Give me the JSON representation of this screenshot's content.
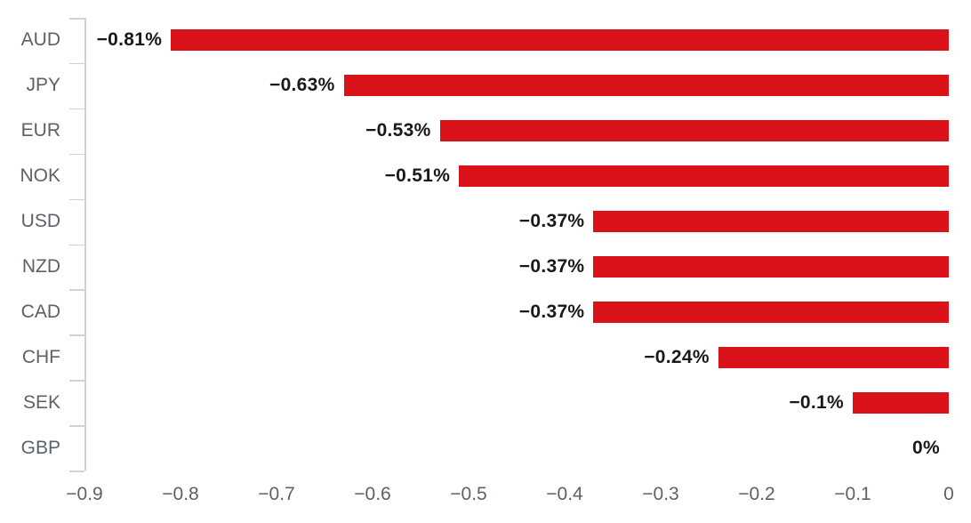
{
  "chart_data": {
    "type": "bar",
    "orientation": "horizontal",
    "title": "",
    "xlabel": "",
    "ylabel": "",
    "categories": [
      "AUD",
      "JPY",
      "EUR",
      "NOK",
      "USD",
      "NZD",
      "CAD",
      "CHF",
      "SEK",
      "GBP"
    ],
    "values": [
      -0.81,
      -0.63,
      -0.53,
      -0.51,
      -0.37,
      -0.37,
      -0.37,
      -0.24,
      -0.1,
      0
    ],
    "bar_labels": [
      "−0.81%",
      "−0.63%",
      "−0.53%",
      "−0.51%",
      "−0.37%",
      "−0.37%",
      "−0.37%",
      "−0.24%",
      "−0.1%",
      "0%"
    ],
    "x_tick_values": [
      -0.9,
      -0.8,
      -0.7,
      -0.6,
      -0.5,
      -0.4,
      -0.3,
      -0.2,
      -0.1,
      0
    ],
    "x_tick_labels": [
      "−0.9",
      "−0.8",
      "−0.7",
      "−0.6",
      "−0.5",
      "−0.4",
      "−0.3",
      "−0.2",
      "−0.1",
      "0"
    ],
    "xlim": [
      -0.9,
      0
    ],
    "grid": false,
    "legend": false,
    "colors": {
      "bar": "#da121a",
      "value_label": "#17191c",
      "category_label": "#5c6069",
      "axis_line": "#cdd2dc",
      "tick_label": "#5c6069",
      "background": "#ffffff"
    }
  }
}
